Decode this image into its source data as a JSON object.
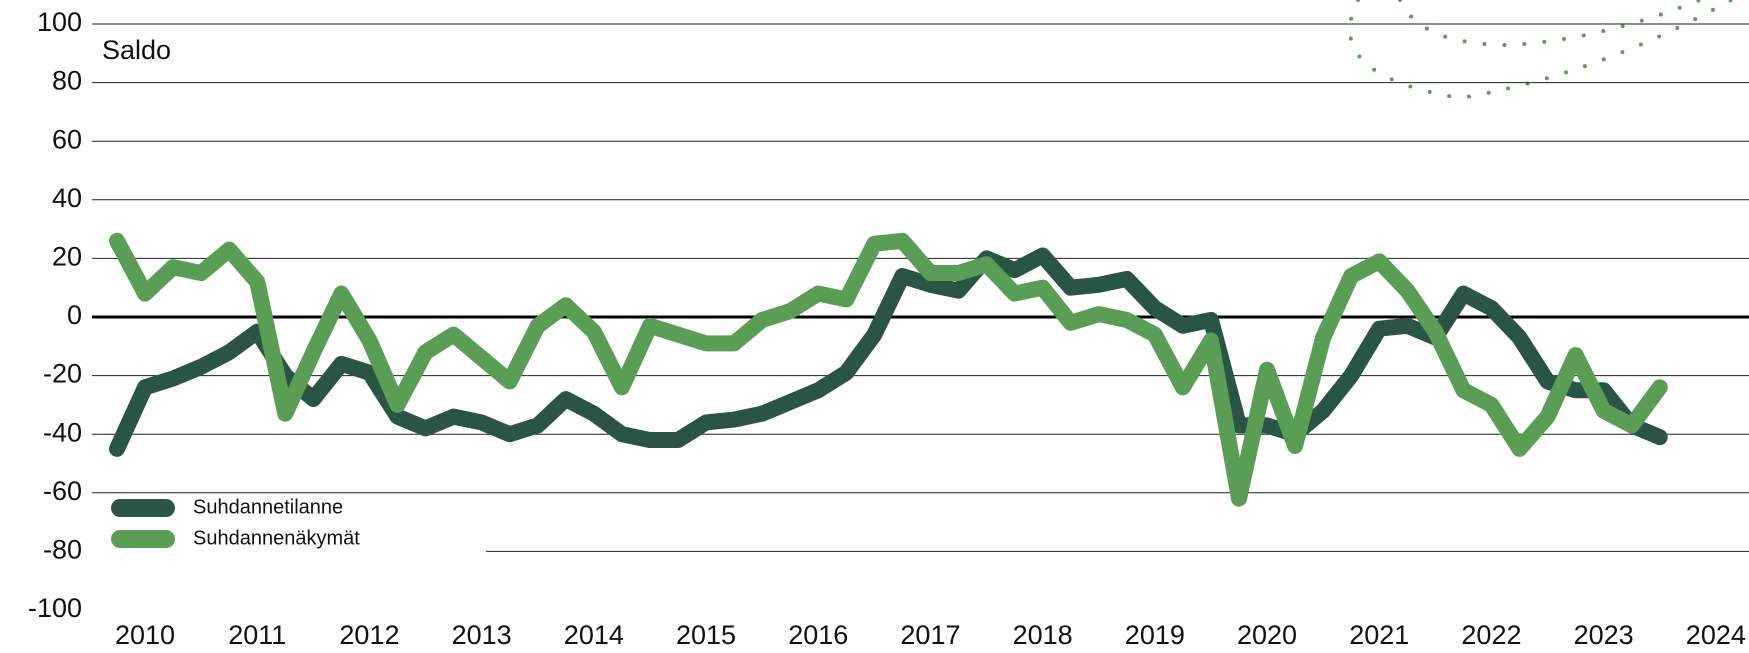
{
  "chart_data": {
    "type": "line",
    "y_label": "Saldo",
    "categories": [
      null,
      "2010",
      null,
      null,
      null,
      "2011",
      null,
      null,
      null,
      "2012",
      null,
      null,
      null,
      "2013",
      null,
      null,
      null,
      "2014",
      null,
      null,
      null,
      "2015",
      null,
      null,
      null,
      "2016",
      null,
      null,
      null,
      "2017",
      null,
      null,
      null,
      "2018",
      null,
      null,
      null,
      "2019",
      null,
      null,
      null,
      "2020",
      null,
      null,
      null,
      "2021",
      null,
      null,
      null,
      "2022",
      null,
      null,
      null,
      "2023",
      null,
      null,
      null,
      "2024"
    ],
    "series": [
      {
        "name": "Suhdannetilanne",
        "color": "#2a5545",
        "values": [
          -45,
          -24,
          -21,
          -17,
          -12,
          -5,
          -20,
          -28,
          -16,
          -19,
          -34,
          -38,
          -34,
          -36,
          -40,
          -37,
          -28,
          -33,
          -40,
          -42,
          -42,
          -36,
          -35,
          -33,
          -29,
          -25,
          -19,
          -6,
          14,
          11,
          9,
          20,
          16,
          21,
          10,
          11,
          13,
          3,
          -3,
          -1,
          -37,
          -37,
          -40,
          -32,
          -20,
          -4,
          -3,
          -7,
          8,
          3,
          -7,
          -22,
          -25,
          -25,
          -37,
          -41,
          null,
          null
        ]
      },
      {
        "name": "Suhdannenäkymät",
        "color": "#5a9e56",
        "values": [
          26,
          8,
          17,
          15,
          23,
          12,
          -33,
          -12,
          8,
          -8,
          -30,
          -12,
          -6,
          -14,
          -22,
          -3,
          4,
          -5,
          -24,
          -3,
          -6,
          -9,
          -9,
          -1,
          2,
          8,
          6,
          25,
          26,
          15,
          15,
          18,
          8,
          10,
          -2,
          1,
          -1,
          -6,
          -24,
          -8,
          -62,
          -18,
          -44,
          -7,
          14,
          19,
          9,
          -5,
          -25,
          -30,
          -45,
          -34,
          -13,
          -32,
          -37,
          -24,
          null,
          null
        ]
      }
    ],
    "ylim": [
      -100,
      100
    ],
    "yticks": [
      -100,
      -80,
      -60,
      -40,
      -20,
      0,
      20,
      40,
      60,
      80,
      100
    ],
    "grid": true,
    "legend": "lower left"
  }
}
